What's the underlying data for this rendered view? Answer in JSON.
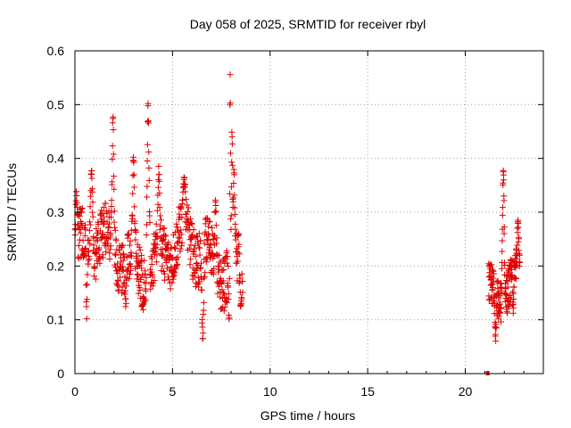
{
  "chart_data": {
    "type": "scatter",
    "title": "Day 058 of 2025, SRMTID for receiver rbyl",
    "xlabel": "GPS time / hours",
    "ylabel": "SRMTID / TECUs",
    "xlim": [
      0,
      24
    ],
    "ylim": [
      0,
      0.6
    ],
    "xticks": [
      0,
      5,
      10,
      15,
      20
    ],
    "xtick_labels": [
      "0",
      "5",
      "10",
      "15",
      "20"
    ],
    "yticks": [
      0,
      0.1,
      0.2,
      0.3,
      0.4,
      0.5,
      0.6
    ],
    "ytick_labels": [
      "0",
      "0.1",
      "0.2",
      "0.3",
      "0.4",
      "0.5",
      "0.6"
    ],
    "grid": true,
    "marker": "+",
    "series": [
      {
        "name": "SRMTID",
        "color": "#e00000",
        "segments": [
          {
            "t_start": 0.0,
            "t_end": 8.6,
            "step": 0.011,
            "base": 0.22,
            "amp": 0.06,
            "noise": 0.05,
            "peaks": [
              {
                "t": 0.08,
                "v": 0.34,
                "w": 0.06
              },
              {
                "t": 0.85,
                "v": 0.38,
                "w": 0.07
              },
              {
                "t": 1.95,
                "v": 0.47,
                "w": 0.06
              },
              {
                "t": 3.0,
                "v": 0.4,
                "w": 0.06
              },
              {
                "t": 3.75,
                "v": 0.49,
                "w": 0.07
              },
              {
                "t": 4.3,
                "v": 0.38,
                "w": 0.06
              },
              {
                "t": 5.6,
                "v": 0.37,
                "w": 0.07
              },
              {
                "t": 7.2,
                "v": 0.31,
                "w": 0.06
              },
              {
                "t": 7.95,
                "v": 0.58,
                "w": 0.03
              },
              {
                "t": 8.05,
                "v": 0.45,
                "w": 0.04
              },
              {
                "t": 8.15,
                "v": 0.37,
                "w": 0.05
              }
            ],
            "dips": [
              {
                "t": 0.6,
                "v": 0.11,
                "w": 0.04
              },
              {
                "t": 2.6,
                "v": 0.13,
                "w": 0.05
              },
              {
                "t": 6.55,
                "v": 0.06,
                "w": 0.06
              },
              {
                "t": 7.9,
                "v": 0.1,
                "w": 0.03
              },
              {
                "t": 8.5,
                "v": 0.12,
                "w": 0.05
              }
            ]
          },
          {
            "t_start": 21.2,
            "t_end": 22.8,
            "step": 0.008,
            "base": 0.17,
            "amp": 0.05,
            "noise": 0.04,
            "peaks": [
              {
                "t": 21.95,
                "v": 0.37,
                "w": 0.06
              },
              {
                "t": 22.7,
                "v": 0.28,
                "w": 0.05
              }
            ],
            "dips": [
              {
                "t": 21.55,
                "v": 0.07,
                "w": 0.05
              },
              {
                "t": 22.45,
                "v": 0.12,
                "w": 0.04
              }
            ]
          }
        ],
        "isolated_points": [
          {
            "x": 21.15,
            "y": 0.0
          }
        ]
      }
    ]
  }
}
